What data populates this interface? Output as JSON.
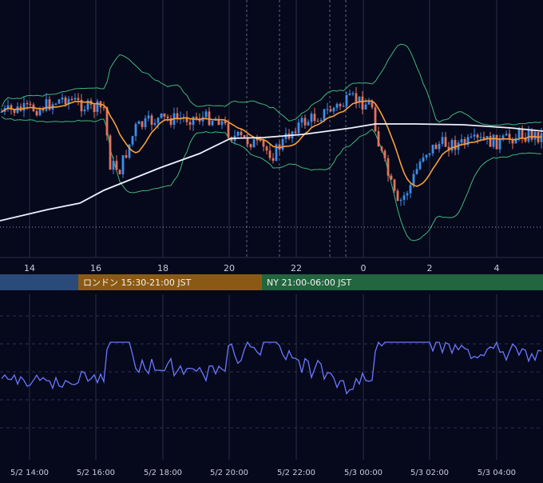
{
  "colors": {
    "background": "#06081c",
    "grid": "#2a2f45",
    "candle_up": "#3d8ee8",
    "candle_down": "#e2735d",
    "ma_short": "#f5a03a",
    "ma_long": "#eef2ff",
    "bollinger": "#3fb878",
    "oscillator": "#6a78ff",
    "axis_text": "#c8ccd8",
    "session_tokyo": "#2a4a7a",
    "session_london": "#8a5a14",
    "session_ny": "#23653e"
  },
  "sessions": [
    {
      "id": "tokyo",
      "label": ""
    },
    {
      "id": "london",
      "label": "ロンドン 15:30-21:00 JST"
    },
    {
      "id": "ny",
      "label": "NY 21:00-06:00 JST"
    }
  ],
  "chart_data": [
    {
      "type": "candlestick",
      "title": "",
      "x_tick_labels": [
        "14",
        "16",
        "18",
        "20",
        "22",
        "0",
        "2",
        "4"
      ],
      "y_tick_labels": [],
      "grid": true,
      "series": [
        {
          "kind": "candles"
        },
        {
          "kind": "moving_average_short"
        },
        {
          "kind": "moving_average_long"
        },
        {
          "kind": "bollinger_bands"
        }
      ]
    },
    {
      "type": "line",
      "title": "",
      "x_tick_labels": [
        "5/2 14:00",
        "5/2 16:00",
        "5/2 18:00",
        "5/2 20:00",
        "5/2 22:00",
        "5/3 00:00",
        "5/3 02:00",
        "5/3 04:00"
      ],
      "grid": true,
      "series": [
        {
          "kind": "oscillator"
        }
      ]
    }
  ]
}
